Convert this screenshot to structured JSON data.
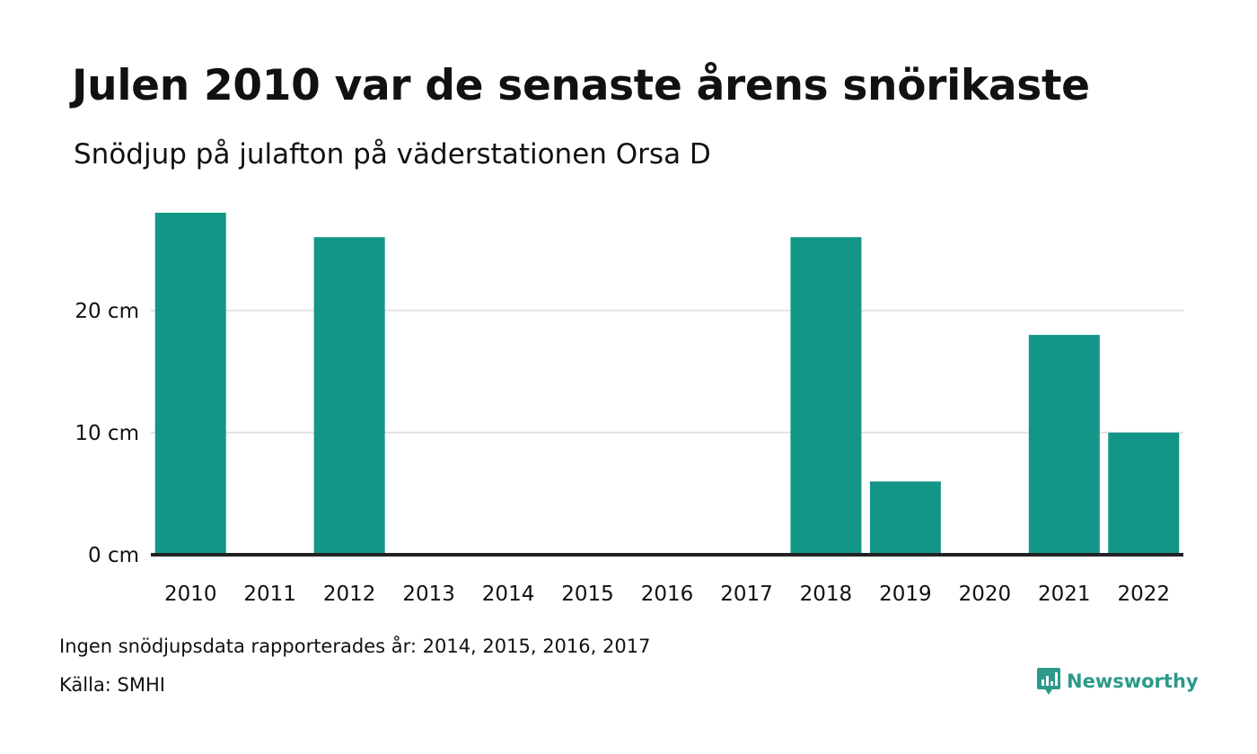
{
  "colors": {
    "bar": "#139688",
    "grid": "#e3e3e3",
    "baseline": "#222222",
    "brand": "#2b9a8a"
  },
  "chart_data": {
    "type": "bar",
    "title": "Julen 2010 var de senaste årens snörikaste",
    "subtitle": "Snödjup på julafton på väderstationen Orsa D",
    "xlabel": "",
    "ylabel": "",
    "categories": [
      "2010",
      "2011",
      "2012",
      "2013",
      "2014",
      "2015",
      "2016",
      "2017",
      "2018",
      "2019",
      "2020",
      "2021",
      "2022"
    ],
    "values": [
      28,
      0,
      26,
      0,
      null,
      null,
      null,
      null,
      26,
      6,
      0,
      18,
      10
    ],
    "ylim": [
      0,
      28
    ],
    "yticks": [
      0,
      10,
      20
    ],
    "ytick_labels": [
      "0 cm",
      "10 cm",
      "20 cm"
    ],
    "grid": true,
    "legend": "none"
  },
  "footer": {
    "note": "Ingen snödjupsdata rapporterades år: 2014, 2015, 2016, 2017",
    "source": "Källa: SMHI",
    "brand": "Newsworthy",
    "brand_icon": "newsworthy-logo-icon"
  }
}
